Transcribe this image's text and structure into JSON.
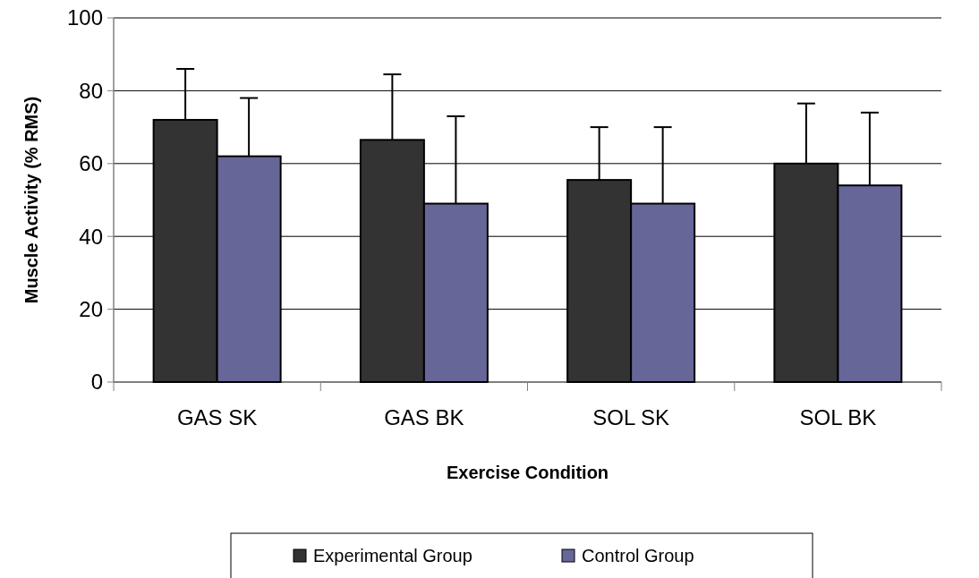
{
  "chart_data": {
    "type": "bar",
    "xlabel": "Exercise Condition",
    "ylabel": "Muscle Activity (% RMS)",
    "categories": [
      "GAS SK",
      "GAS BK",
      "SOL SK",
      "SOL BK"
    ],
    "series": [
      {
        "name": "Experimental Group",
        "color": "#333333",
        "values": [
          72,
          66.5,
          55.5,
          60
        ],
        "errors": [
          14,
          18,
          14.5,
          16.5
        ]
      },
      {
        "name": "Control Group",
        "color": "#666699",
        "values": [
          62,
          49,
          49,
          54
        ],
        "errors": [
          16,
          24,
          21,
          20
        ]
      }
    ],
    "ylim": [
      0,
      100
    ],
    "yticks": [
      0,
      20,
      40,
      60,
      80,
      100
    ],
    "grid": "y",
    "legend": "bottom"
  }
}
